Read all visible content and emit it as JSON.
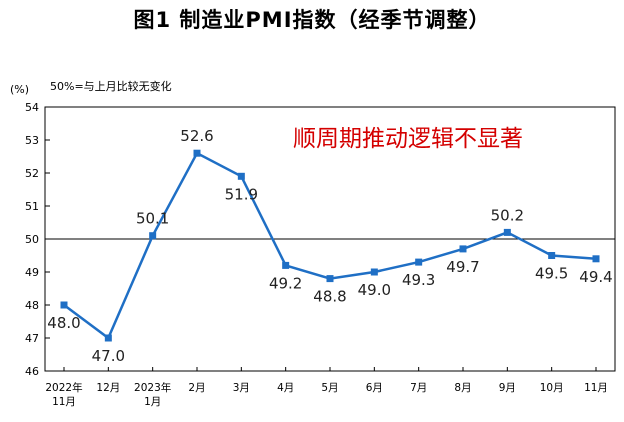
{
  "chart_data": {
    "type": "line",
    "title": "图1  制造业PMI指数（经季节调整）",
    "yunit": "(%)",
    "reference_note": "50%=与上月比较无变化",
    "annotation": "顺周期推动逻辑不显著",
    "ylim": [
      46,
      54
    ],
    "yticks": [
      "46",
      "47",
      "48",
      "49",
      "50",
      "51",
      "52",
      "53",
      "54"
    ],
    "reference_value": 50,
    "categories": [
      [
        "2022年",
        "11月"
      ],
      [
        "12月"
      ],
      [
        "2023年",
        "1月"
      ],
      [
        "2月"
      ],
      [
        "3月"
      ],
      [
        "4月"
      ],
      [
        "5月"
      ],
      [
        "6月"
      ],
      [
        "7月"
      ],
      [
        "8月"
      ],
      [
        "9月"
      ],
      [
        "10月"
      ],
      [
        "11月"
      ]
    ],
    "values": [
      48.0,
      47.0,
      50.1,
      52.6,
      51.9,
      49.2,
      48.8,
      49.0,
      49.3,
      49.7,
      50.2,
      49.5,
      49.4
    ],
    "data_labels": [
      "48.0",
      "47.0",
      "50.1",
      "52.6",
      "51.9",
      "49.2",
      "48.8",
      "49.0",
      "49.3",
      "49.7",
      "50.2",
      "49.5",
      "49.4"
    ],
    "line_color": "#1f6fc5",
    "annotation_color": "#d40000"
  }
}
